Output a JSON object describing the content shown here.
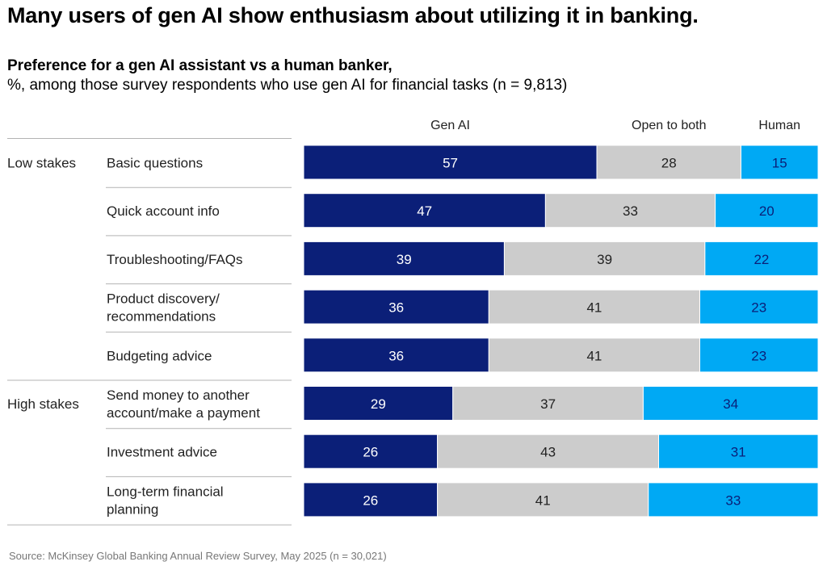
{
  "headline": "Many users of gen AI show enthusiasm about utilizing it in banking.",
  "subtitle": "Preference for a gen AI assistant vs a human banker,",
  "subsubtitle": "%, among those survey respondents who use gen AI for financial tasks (n = 9,813)",
  "source": "Source: McKinsey Global Banking Annual Review Survey, May 2025 (n = 30,021)",
  "colors": {
    "gen_ai": "#0b1f78",
    "open": "#cccccc",
    "human": "#00a9f4",
    "divider": "#b3b3b3"
  },
  "chart_data": {
    "type": "bar",
    "orientation": "horizontal-stacked",
    "xlim": [
      0,
      100
    ],
    "legend": [
      "Gen AI",
      "Open to both",
      "Human"
    ],
    "legend_placement": "top",
    "groups": [
      {
        "label": "Low stakes",
        "rows": [
          0,
          1,
          2,
          3,
          4
        ]
      },
      {
        "label": "High stakes",
        "rows": [
          5,
          6,
          7
        ]
      }
    ],
    "categories": [
      [
        "Basic questions"
      ],
      [
        "Quick account info"
      ],
      [
        "Troubleshooting/FAQs"
      ],
      [
        "Product discovery/",
        "recommendations"
      ],
      [
        "Budgeting advice"
      ],
      [
        "Send money to another",
        "account/make a payment"
      ],
      [
        "Investment advice"
      ],
      [
        "Long-term financial",
        "planning"
      ]
    ],
    "series": [
      {
        "name": "Gen AI",
        "values": [
          57,
          47,
          39,
          36,
          36,
          29,
          26,
          26
        ]
      },
      {
        "name": "Open to both",
        "values": [
          28,
          33,
          39,
          41,
          41,
          37,
          43,
          41
        ]
      },
      {
        "name": "Human",
        "values": [
          15,
          20,
          22,
          23,
          23,
          34,
          31,
          33
        ]
      }
    ]
  }
}
